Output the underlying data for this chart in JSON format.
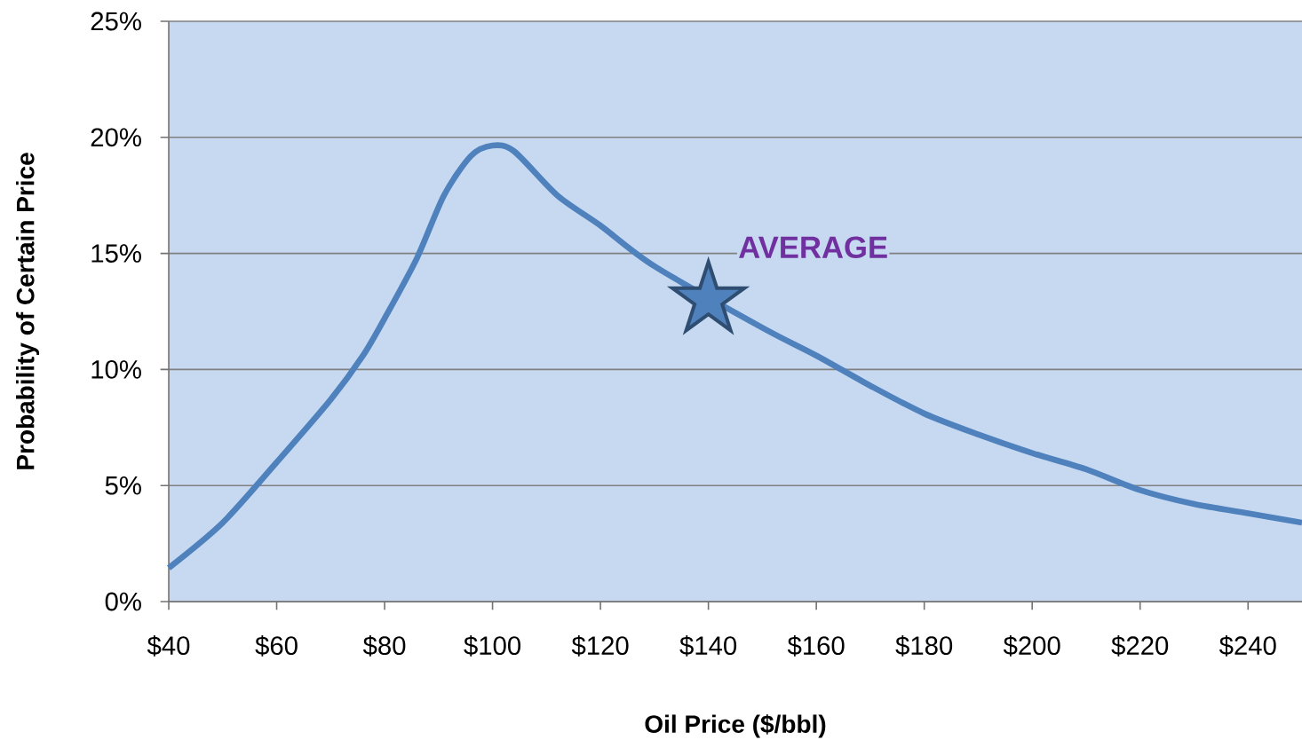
{
  "chart_data": {
    "type": "line",
    "xlabel": "Oil Price ($/bbl)",
    "ylabel": "Probability of Certain Price",
    "xlim": [
      40,
      250
    ],
    "ylim": [
      0,
      25
    ],
    "xticks": [
      {
        "value": 40,
        "label": "$40"
      },
      {
        "value": 60,
        "label": "$60"
      },
      {
        "value": 80,
        "label": "$80"
      },
      {
        "value": 100,
        "label": "$100"
      },
      {
        "value": 120,
        "label": "$120"
      },
      {
        "value": 140,
        "label": "$140"
      },
      {
        "value": 160,
        "label": "$160"
      },
      {
        "value": 180,
        "label": "$180"
      },
      {
        "value": 200,
        "label": "$200"
      },
      {
        "value": 220,
        "label": "$220"
      },
      {
        "value": 240,
        "label": "$240"
      }
    ],
    "yticks": [
      {
        "value": 0,
        "label": "0%"
      },
      {
        "value": 5,
        "label": "5%"
      },
      {
        "value": 10,
        "label": "10%"
      },
      {
        "value": 15,
        "label": "15%"
      },
      {
        "value": 20,
        "label": "20%"
      },
      {
        "value": 25,
        "label": "25%"
      }
    ],
    "grid": "y",
    "series": [
      {
        "color": "#4f81bd",
        "marker": "none",
        "x": [
          40,
          50,
          60,
          70,
          76,
          80,
          86,
          91,
          96,
          100,
          104,
          112,
          120,
          130,
          150,
          160,
          170,
          180,
          190,
          200,
          210,
          220,
          230,
          240,
          250
        ],
        "values": [
          1.45,
          3.4,
          6.0,
          8.7,
          10.6,
          12.2,
          14.8,
          17.5,
          19.2,
          19.65,
          19.4,
          17.5,
          16.2,
          14.45,
          11.8,
          10.6,
          9.3,
          8.1,
          7.2,
          6.4,
          5.7,
          4.8,
          4.2,
          3.8,
          3.4
        ]
      },
      {
        "type": "scatter",
        "color": "#4f81bd",
        "marker": "star",
        "x": [
          140
        ],
        "values": [
          13
        ]
      }
    ],
    "annotations": [
      {
        "text": "AVERAGE",
        "x": 140,
        "y": 13
      }
    ]
  }
}
